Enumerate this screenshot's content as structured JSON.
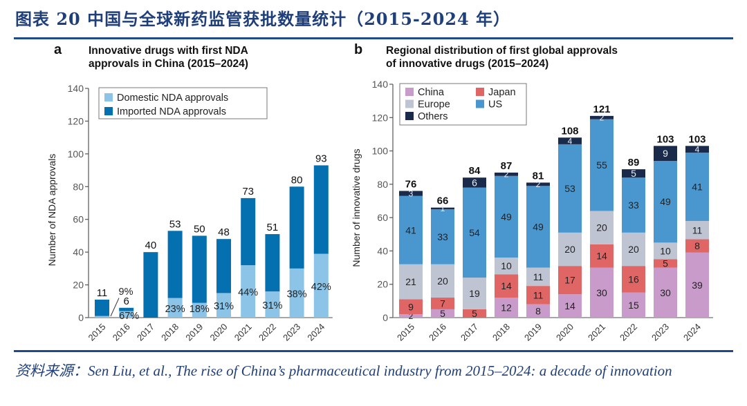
{
  "figure": {
    "title": "图表 20    中国与全球新药监管获批数量统计（2015-2024 年）",
    "source": "资料来源：Sen Liu, et al., The rise of China’s pharmaceutical industry from 2015–2024: a decade of innovation"
  },
  "colors": {
    "rule": "#1f4a8a",
    "title": "#1f3f7a",
    "domestic": "#8cc4e8",
    "imported": "#0570b0",
    "china": "#c99bca",
    "japan": "#e06666",
    "europe": "#bfc4d2",
    "us": "#4a97cf",
    "others": "#1a2a4a"
  },
  "chart_data": [
    {
      "type": "bar",
      "panel_letter": "a",
      "title": "Innovative drugs with first NDA approvals in China (2015–2024)",
      "title_lines": [
        "Innovative drugs with first NDA",
        "approvals in China (2015–2024)"
      ],
      "xlabel": "",
      "ylabel": "Number of NDA approvals",
      "ylim": [
        0,
        140
      ],
      "yticks": [
        0,
        20,
        40,
        60,
        80,
        100,
        120,
        140
      ],
      "grid": false,
      "legend_position": "top-left",
      "stacked": true,
      "categories": [
        "2015",
        "2016",
        "2017",
        "2018",
        "2019",
        "2020",
        "2021",
        "2022",
        "2023",
        "2024"
      ],
      "series": [
        {
          "name": "Domestic NDA approvals",
          "color_key": "domestic",
          "values": [
            1,
            4,
            0,
            12,
            9,
            15,
            32,
            16,
            30,
            39
          ]
        },
        {
          "name": "Imported NDA approvals",
          "color_key": "imported",
          "values": [
            10,
            2,
            40,
            41,
            41,
            33,
            41,
            35,
            50,
            54
          ]
        }
      ],
      "totals": [
        11,
        6,
        40,
        53,
        50,
        48,
        73,
        51,
        80,
        93
      ],
      "total_labels": [
        "11",
        "6",
        "40",
        "53",
        "50",
        "48",
        "73",
        "51",
        "80",
        "93"
      ],
      "domestic_share_labels": [
        "9%",
        "67%",
        "",
        "23%",
        "18%",
        "31%",
        "44%",
        "31%",
        "38%",
        "42%"
      ]
    },
    {
      "type": "bar",
      "panel_letter": "b",
      "title": "Regional distribution of first global approvals of innovative drugs (2015–2024)",
      "title_lines": [
        "Regional distribution of first global approvals",
        "of innovative drugs (2015–2024)"
      ],
      "xlabel": "",
      "ylabel": "Number of innovative drugs",
      "ylim": [
        0,
        140
      ],
      "yticks": [
        0,
        20,
        40,
        60,
        80,
        100,
        120,
        140
      ],
      "grid": false,
      "legend_position": "top-left",
      "stacked": true,
      "categories": [
        "2015",
        "2016",
        "2017",
        "2018",
        "2019",
        "2020",
        "2021",
        "2022",
        "2023",
        "2024"
      ],
      "series": [
        {
          "name": "China",
          "color_key": "china",
          "label_color": "#222222",
          "values": [
            2,
            5,
            0,
            12,
            8,
            14,
            30,
            15,
            30,
            39
          ]
        },
        {
          "name": "Japan",
          "color_key": "japan",
          "label_color": "#222222",
          "values": [
            9,
            7,
            5,
            14,
            11,
            17,
            14,
            16,
            5,
            8
          ]
        },
        {
          "name": "Europe",
          "color_key": "europe",
          "label_color": "#222222",
          "values": [
            21,
            20,
            19,
            10,
            11,
            20,
            20,
            20,
            10,
            11
          ]
        },
        {
          "name": "US",
          "color_key": "us",
          "label_color": "#222222",
          "values": [
            41,
            33,
            54,
            49,
            49,
            53,
            55,
            33,
            49,
            41
          ]
        },
        {
          "name": "Others",
          "color_key": "others",
          "label_color": "#e8eef6",
          "values": [
            3,
            1,
            6,
            2,
            2,
            4,
            2,
            5,
            9,
            4
          ]
        }
      ],
      "legend_order": [
        "China",
        "Japan",
        "Europe",
        "US",
        "Others"
      ],
      "totals": [
        76,
        66,
        84,
        87,
        81,
        108,
        121,
        89,
        103,
        103
      ],
      "total_labels": [
        "76",
        "66",
        "84",
        "87",
        "81",
        "108",
        "121",
        "89",
        "103",
        "103"
      ]
    }
  ]
}
